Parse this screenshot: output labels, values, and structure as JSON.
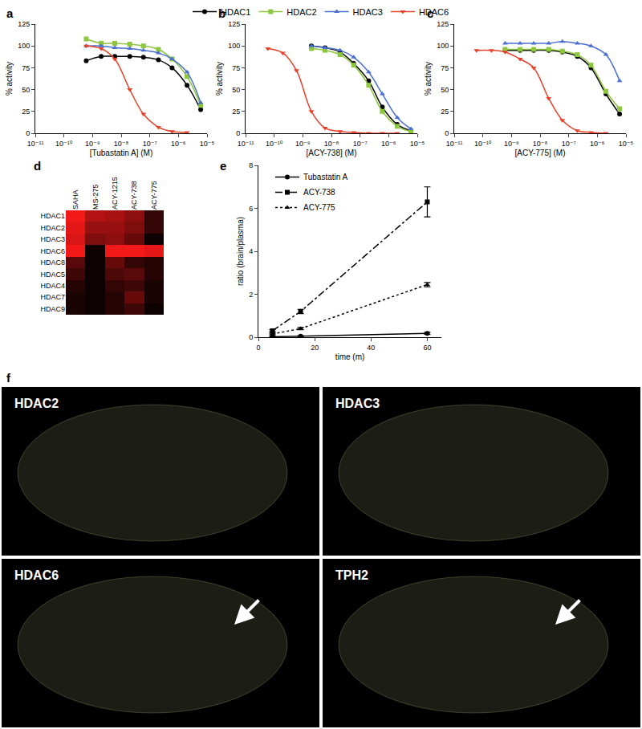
{
  "chart_data": [
    {
      "type": "line",
      "title": "a",
      "log": "x",
      "x": [
        6e-10,
        2e-09,
        6e-09,
        2e-08,
        6e-08,
        2e-07,
        6e-07,
        2e-06,
        6e-06
      ],
      "series": [
        {
          "name": "HDAC1",
          "color": "#000000",
          "marker": "circle",
          "values": [
            83,
            88,
            88,
            88,
            87,
            84,
            75,
            55,
            27
          ]
        },
        {
          "name": "HDAC2",
          "color": "#8dc63f",
          "marker": "square",
          "values": [
            108,
            103,
            103,
            102,
            100,
            96,
            85,
            65,
            32
          ]
        },
        {
          "name": "HDAC3",
          "color": "#4a6fd1",
          "marker": "triangle-up",
          "values": [
            100,
            100,
            98,
            97,
            95,
            92,
            85,
            70,
            35
          ]
        },
        {
          "name": "HDAC6",
          "color": "#e8412a",
          "marker": "triangle-down",
          "values": [
            100,
            97,
            85,
            50,
            22,
            7,
            2,
            1,
            null
          ]
        }
      ],
      "xlabel": "[Tubastatin A] (M)",
      "ylabel": "% activity",
      "xlim": [
        1e-11,
        1e-05
      ],
      "xticks": [
        {
          "value": 1e-11,
          "label": "10⁻¹¹"
        },
        {
          "value": 1e-10,
          "label": "10⁻¹⁰"
        },
        {
          "value": 1e-09,
          "label": "10⁻⁹"
        },
        {
          "value": 1e-08,
          "label": "10⁻⁸"
        },
        {
          "value": 1e-07,
          "label": "10⁻⁷"
        },
        {
          "value": 1e-06,
          "label": "10⁻⁶"
        },
        {
          "value": 1e-05,
          "label": "10⁻⁵"
        }
      ],
      "ylim": [
        0,
        125
      ],
      "yticks": [
        0,
        25,
        50,
        75,
        100,
        125
      ],
      "legend": "top"
    },
    {
      "type": "line",
      "title": "b",
      "log": "x",
      "x": [
        6e-11,
        2e-10,
        6e-10,
        2e-09,
        6e-09,
        2e-08,
        6e-08,
        2e-07,
        6e-07,
        2e-06,
        6e-06
      ],
      "series": [
        {
          "name": "HDAC1",
          "color": "#000000",
          "marker": "circle",
          "values": [
            null,
            null,
            null,
            100,
            98,
            93,
            80,
            60,
            30,
            10,
            3
          ]
        },
        {
          "name": "HDAC2",
          "color": "#8dc63f",
          "marker": "square",
          "values": [
            null,
            null,
            null,
            97,
            95,
            90,
            78,
            55,
            25,
            8,
            2
          ]
        },
        {
          "name": "HDAC3",
          "color": "#4a6fd1",
          "marker": "triangle-up",
          "values": [
            null,
            null,
            null,
            100,
            98,
            95,
            87,
            70,
            45,
            18,
            5
          ]
        },
        {
          "name": "HDAC6",
          "color": "#e8412a",
          "marker": "triangle-down",
          "values": [
            97,
            92,
            72,
            25,
            6,
            2,
            1,
            0,
            0,
            0,
            null
          ]
        }
      ],
      "xlabel": "[ACY-738] (M)",
      "ylabel": "% activity",
      "xlim": [
        1e-11,
        1e-05
      ],
      "xticks": [
        {
          "value": 1e-11,
          "label": "10⁻¹¹"
        },
        {
          "value": 1e-10,
          "label": "10⁻¹⁰"
        },
        {
          "value": 1e-09,
          "label": "10⁻⁹"
        },
        {
          "value": 1e-08,
          "label": "10⁻⁸"
        },
        {
          "value": 1e-07,
          "label": "10⁻⁷"
        },
        {
          "value": 1e-06,
          "label": "10⁻⁶"
        },
        {
          "value": 1e-05,
          "label": "10⁻⁵"
        }
      ],
      "ylim": [
        0,
        125
      ],
      "yticks": [
        0,
        25,
        50,
        75,
        100,
        125
      ]
    },
    {
      "type": "line",
      "title": "c",
      "log": "x",
      "x": [
        6e-11,
        2e-10,
        6e-10,
        2e-09,
        6e-09,
        2e-08,
        6e-08,
        2e-07,
        6e-07,
        2e-06,
        6e-06
      ],
      "series": [
        {
          "name": "HDAC1",
          "color": "#000000",
          "marker": "circle",
          "values": [
            null,
            null,
            95,
            95,
            95,
            95,
            93,
            88,
            75,
            45,
            22
          ]
        },
        {
          "name": "HDAC2",
          "color": "#8dc63f",
          "marker": "square",
          "values": [
            null,
            null,
            96,
            96,
            96,
            96,
            94,
            90,
            78,
            48,
            28
          ]
        },
        {
          "name": "HDAC3",
          "color": "#4a6fd1",
          "marker": "triangle-up",
          "values": [
            null,
            null,
            103,
            103,
            103,
            103,
            105,
            103,
            100,
            90,
            60
          ]
        },
        {
          "name": "HDAC6",
          "color": "#e8412a",
          "marker": "triangle-down",
          "values": [
            95,
            95,
            93,
            85,
            75,
            40,
            15,
            3,
            1,
            0,
            null
          ]
        }
      ],
      "xlabel": "[ACY-775] (M)",
      "ylabel": "% activity",
      "xlim": [
        1e-11,
        1e-05
      ],
      "xticks": [
        {
          "value": 1e-11,
          "label": "10⁻¹¹"
        },
        {
          "value": 1e-10,
          "label": "10⁻¹⁰"
        },
        {
          "value": 1e-09,
          "label": "10⁻⁹"
        },
        {
          "value": 1e-08,
          "label": "10⁻⁸"
        },
        {
          "value": 1e-07,
          "label": "10⁻⁷"
        },
        {
          "value": 1e-06,
          "label": "10⁻⁶"
        },
        {
          "value": 1e-05,
          "label": "10⁻⁵"
        }
      ],
      "ylim": [
        0,
        125
      ],
      "yticks": [
        0,
        25,
        50,
        75,
        100,
        125
      ]
    },
    {
      "type": "heatmap",
      "title": "d",
      "x": [
        "SAHA",
        "MS-275",
        "ACY-1215",
        "ACY-738",
        "ACY-775"
      ],
      "y": [
        "HDAC1",
        "HDAC2",
        "HDAC3",
        "HDAC6",
        "HDAC8",
        "HDAC5",
        "HDAC4",
        "HDAC7",
        "HDAC9"
      ],
      "z": [
        [
          95,
          70,
          65,
          55,
          20
        ],
        [
          90,
          60,
          60,
          50,
          20
        ],
        [
          85,
          50,
          55,
          40,
          5
        ],
        [
          95,
          5,
          95,
          95,
          90
        ],
        [
          35,
          5,
          40,
          20,
          15
        ],
        [
          25,
          5,
          30,
          35,
          15
        ],
        [
          15,
          5,
          20,
          25,
          10
        ],
        [
          10,
          5,
          15,
          40,
          10
        ],
        [
          10,
          5,
          15,
          25,
          5
        ]
      ],
      "zlim": [
        0,
        100
      ]
    },
    {
      "type": "line",
      "title": "e",
      "x": [
        5,
        15,
        60
      ],
      "series": [
        {
          "name": "Tubastatin A",
          "color": "#000000",
          "marker": "circle",
          "line_style": "solid",
          "values": [
            0.02,
            0.05,
            0.18
          ],
          "errors": [
            0.02,
            0.02,
            0.05
          ]
        },
        {
          "name": "ACY-738",
          "color": "#000000",
          "marker": "square",
          "line_style": "dash-dot",
          "values": [
            0.3,
            1.2,
            6.3
          ],
          "errors": [
            0.05,
            0.1,
            0.7
          ]
        },
        {
          "name": "ACY-775",
          "color": "#000000",
          "marker": "triangle-up",
          "line_style": "dotted",
          "values": [
            0.15,
            0.4,
            2.45
          ],
          "errors": [
            0.03,
            0.05,
            0.1
          ]
        }
      ],
      "xlabel": "time (m)",
      "ylabel": "ratio (brain/plasma)",
      "xlim": [
        0,
        65
      ],
      "xticks": [
        0,
        20,
        40,
        60
      ],
      "ylim": [
        0,
        8
      ],
      "yticks": [
        0,
        2,
        4,
        6,
        8
      ],
      "legend": "upper left"
    }
  ],
  "images": {
    "title": "f",
    "panels": [
      {
        "label": "HDAC2"
      },
      {
        "label": "HDAC3"
      },
      {
        "label": "HDAC6",
        "arrow": true
      },
      {
        "label": "TPH2",
        "arrow": true
      }
    ]
  }
}
